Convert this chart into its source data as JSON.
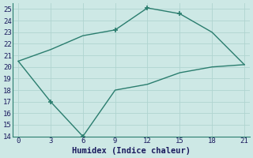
{
  "line1_x": [
    0,
    3,
    6,
    9,
    12,
    15,
    18,
    21
  ],
  "line1_y": [
    20.5,
    21.5,
    22.7,
    23.2,
    25.1,
    24.6,
    23.0,
    20.2
  ],
  "line2_x": [
    0,
    3,
    6,
    9,
    12,
    15,
    18,
    21
  ],
  "line2_y": [
    20.5,
    17.0,
    14.0,
    18.0,
    18.5,
    19.5,
    20.0,
    20.2
  ],
  "line1_markers": [
    false,
    false,
    false,
    true,
    true,
    true,
    false,
    false
  ],
  "line2_markers": [
    false,
    true,
    true,
    false,
    false,
    false,
    false,
    false
  ],
  "line_color": "#2a7d6e",
  "marker": "+",
  "marker_size": 5,
  "marker_lw": 1.2,
  "xlabel": "Humidex (Indice chaleur)",
  "xlim": [
    -0.5,
    21.5
  ],
  "ylim": [
    14,
    25.5
  ],
  "xticks": [
    0,
    3,
    6,
    9,
    12,
    15,
    18,
    21
  ],
  "yticks": [
    14,
    15,
    16,
    17,
    18,
    19,
    20,
    21,
    22,
    23,
    24,
    25
  ],
  "bg_color": "#cde8e5",
  "grid_color": "#b0d4d0",
  "font_color": "#1a1a5e",
  "font_family": "monospace",
  "tick_fontsize": 6.5,
  "xlabel_fontsize": 7.5
}
